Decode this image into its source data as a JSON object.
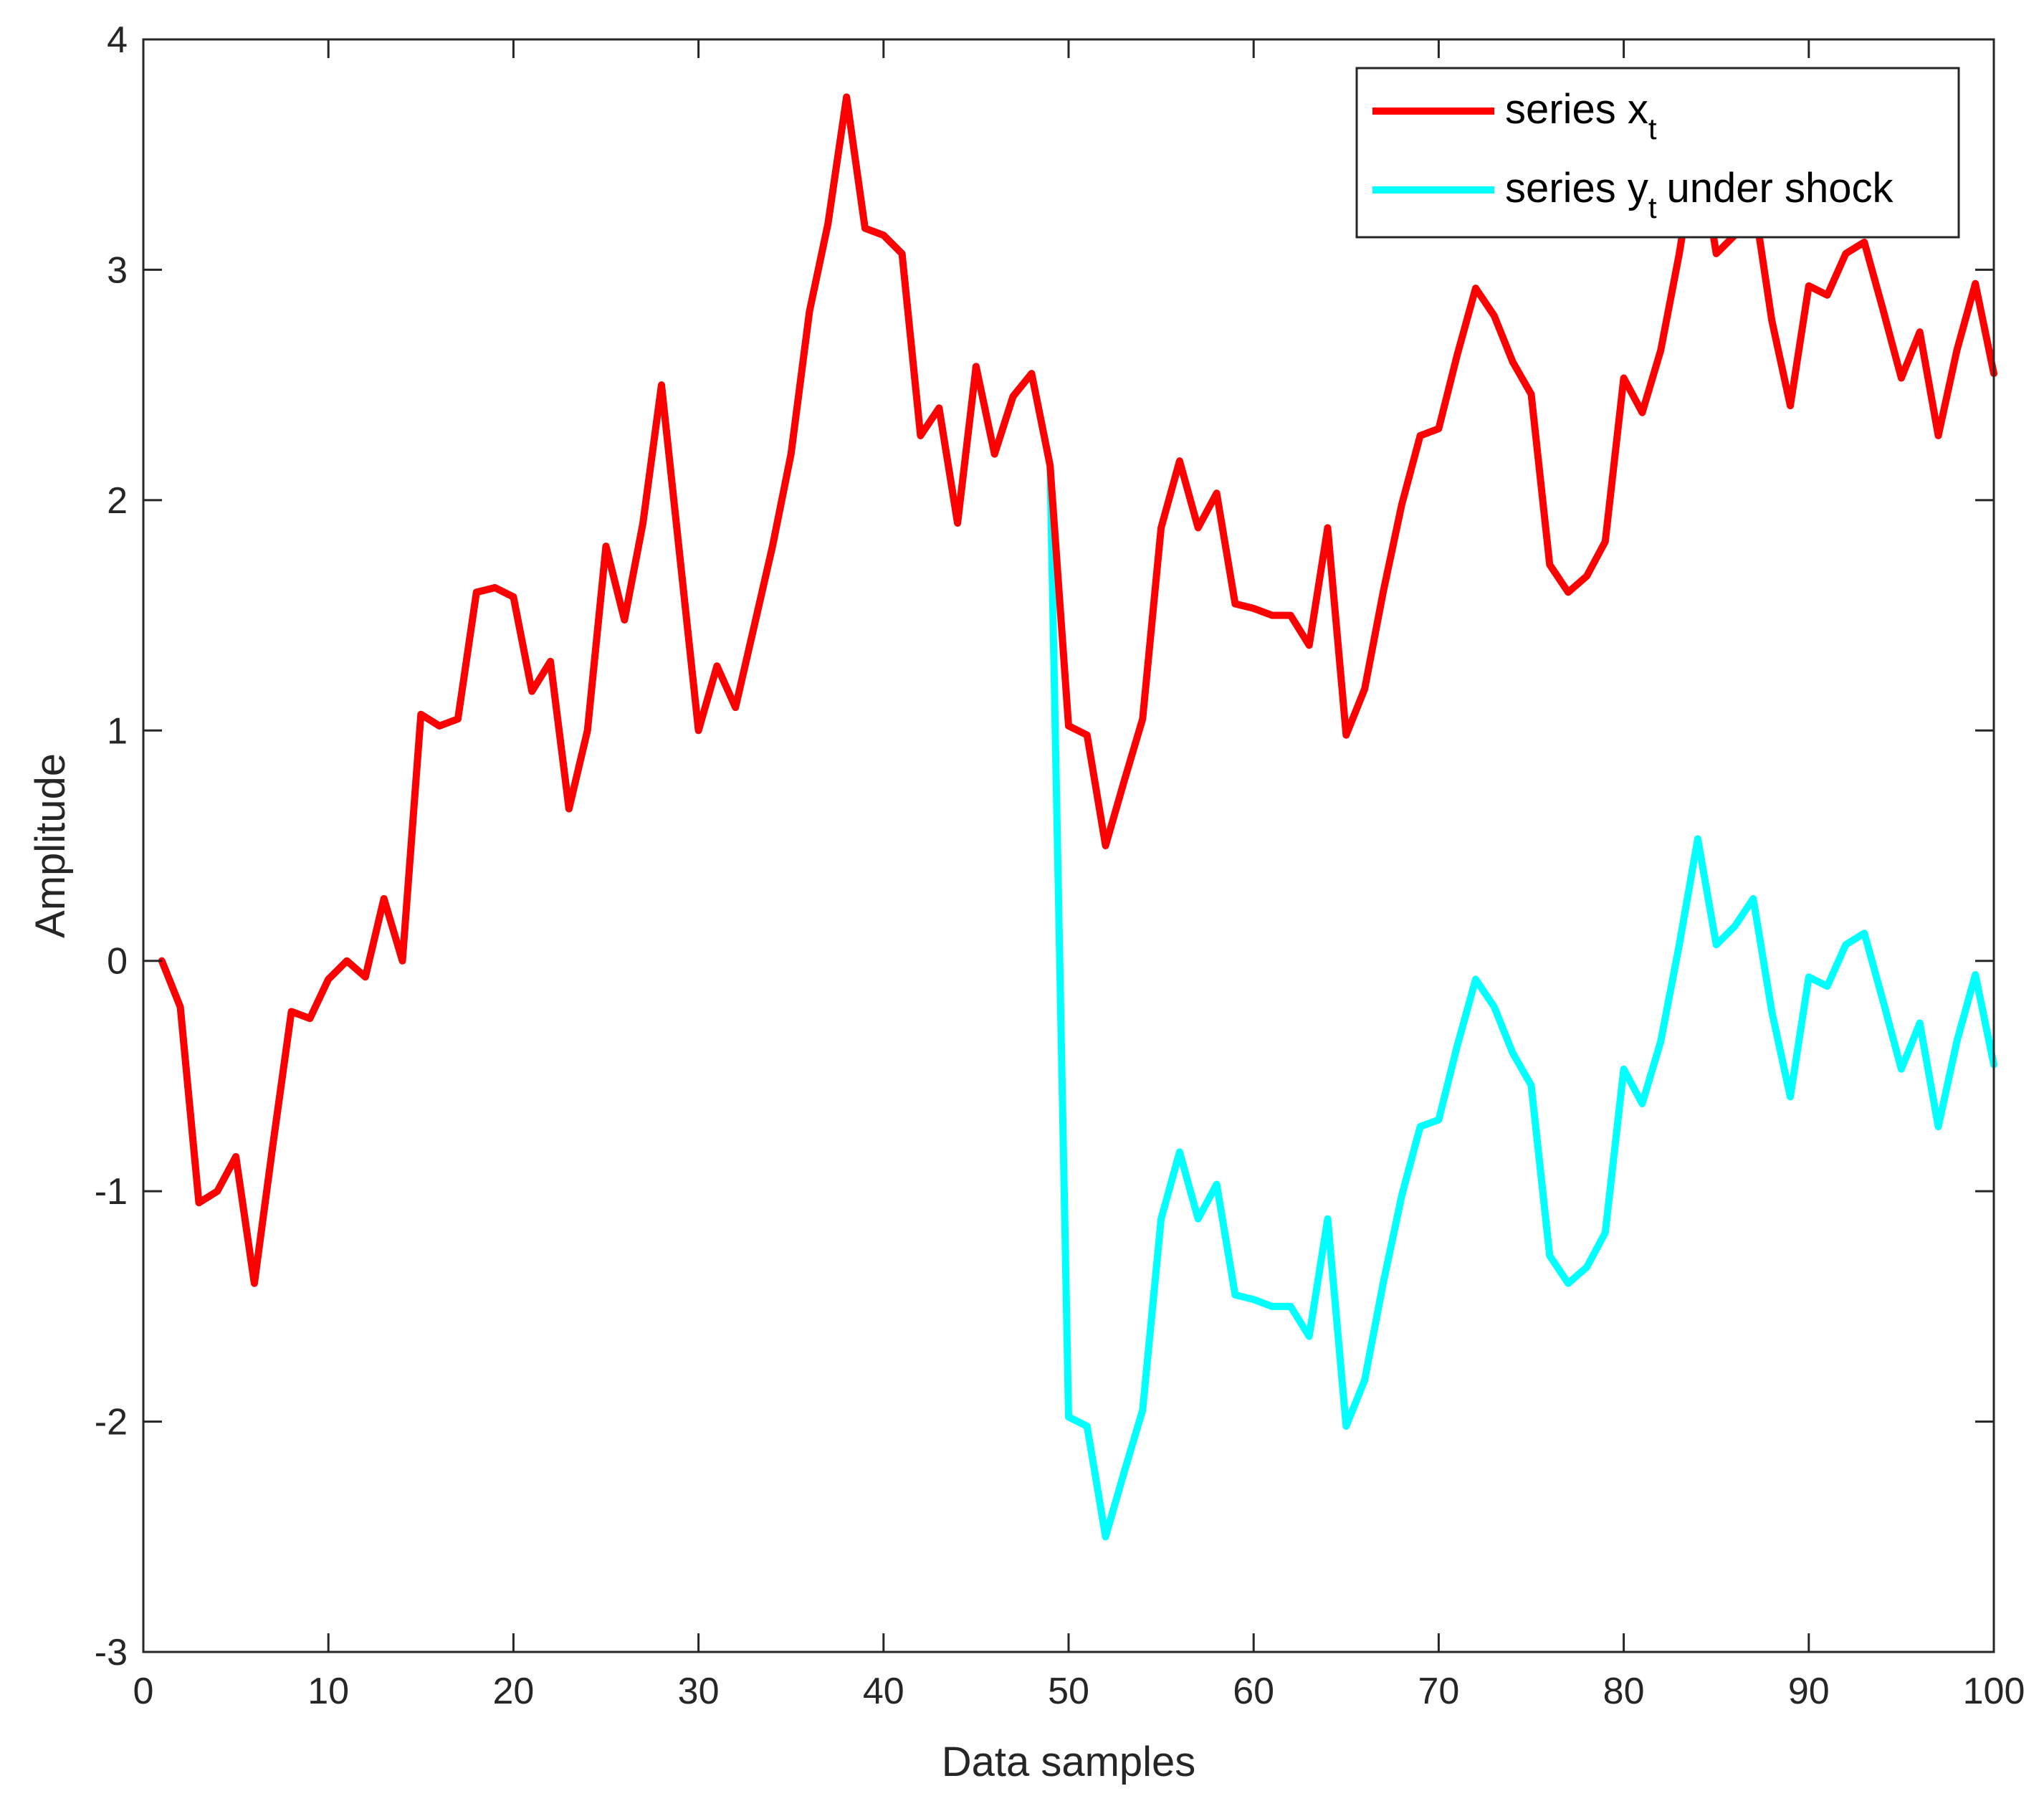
{
  "chart_data": {
    "type": "line",
    "title": "",
    "xlabel": "Data samples",
    "ylabel": "Amplitude",
    "xlim": [
      0,
      100
    ],
    "ylim": [
      -3,
      4
    ],
    "xticks": [
      0,
      10,
      20,
      30,
      40,
      50,
      60,
      70,
      80,
      90,
      100
    ],
    "yticks": [
      -3,
      -2,
      -1,
      0,
      1,
      2,
      3,
      4
    ],
    "xtick_labels": [
      "0",
      "10",
      "20",
      "30",
      "40",
      "50",
      "60",
      "70",
      "80",
      "90",
      "100"
    ],
    "ytick_labels": [
      "-3",
      "-2",
      "-1",
      "0",
      "1",
      "2",
      "3",
      "4"
    ],
    "grid": false,
    "legend_position": "top-right",
    "x": [
      1,
      2,
      3,
      4,
      5,
      6,
      7,
      8,
      9,
      10,
      11,
      12,
      13,
      14,
      15,
      16,
      17,
      18,
      19,
      20,
      21,
      22,
      23,
      24,
      25,
      26,
      27,
      28,
      29,
      30,
      31,
      32,
      33,
      34,
      35,
      36,
      37,
      38,
      39,
      40,
      41,
      42,
      43,
      44,
      45,
      46,
      47,
      48,
      49,
      50,
      51,
      52,
      53,
      54,
      55,
      56,
      57,
      58,
      59,
      60,
      61,
      62,
      63,
      64,
      65,
      66,
      67,
      68,
      69,
      70,
      71,
      72,
      73,
      74,
      75,
      76,
      77,
      78,
      79,
      80,
      81,
      82,
      83,
      84,
      85,
      86,
      87,
      88,
      89,
      90,
      91,
      92,
      93,
      94,
      95,
      96,
      97,
      98,
      99,
      100
    ],
    "series": [
      {
        "name": "series x",
        "name_subscript": "t",
        "color": "#ff0000",
        "values": [
          0,
          -0.2,
          -1.05,
          -1.0,
          -0.85,
          -1.4,
          -0.8,
          -0.22,
          -0.25,
          -0.08,
          0.0,
          -0.07,
          0.27,
          0.0,
          1.07,
          1.02,
          1.05,
          1.6,
          1.62,
          1.58,
          1.17,
          1.3,
          0.66,
          1.0,
          1.8,
          1.48,
          1.9,
          2.5,
          1.75,
          1.0,
          1.28,
          1.1,
          1.45,
          1.8,
          2.2,
          2.82,
          3.2,
          3.75,
          3.18,
          3.15,
          3.07,
          2.28,
          2.4,
          1.9,
          2.58,
          2.2,
          2.45,
          2.55,
          2.15,
          1.02,
          0.98,
          0.5,
          0.78,
          1.05,
          1.88,
          2.17,
          1.88,
          2.03,
          1.55,
          1.53,
          1.5,
          1.5,
          1.37,
          1.88,
          0.98,
          1.18,
          1.6,
          1.98,
          2.28,
          2.31,
          2.63,
          2.92,
          2.8,
          2.6,
          2.46,
          1.72,
          1.6,
          1.67,
          1.82,
          2.53,
          2.38,
          2.65,
          3.07,
          3.57,
          3.07,
          3.15,
          3.32,
          2.78,
          2.41,
          2.93,
          2.89,
          3.07,
          3.12,
          2.83,
          2.53,
          2.73,
          2.28,
          2.65,
          2.94,
          2.55
        ]
      },
      {
        "name": "series y",
        "name_subscript": "t",
        "name_suffix": "under shock",
        "color": "#00ffff",
        "values": [
          0,
          -0.2,
          -1.05,
          -1.0,
          -0.85,
          -1.4,
          -0.8,
          -0.22,
          -0.25,
          -0.08,
          0.0,
          -0.07,
          0.27,
          0.0,
          1.07,
          1.02,
          1.05,
          1.6,
          1.62,
          1.58,
          1.17,
          1.3,
          0.66,
          1.0,
          1.8,
          1.48,
          1.9,
          2.5,
          1.75,
          1.0,
          1.28,
          1.1,
          1.45,
          1.8,
          2.2,
          2.82,
          3.2,
          3.75,
          3.18,
          3.15,
          3.07,
          2.28,
          2.4,
          1.9,
          2.58,
          2.2,
          2.45,
          2.55,
          2.15,
          -1.98,
          -2.02,
          -2.5,
          -2.22,
          -1.95,
          -1.12,
          -0.83,
          -1.12,
          -0.97,
          -1.45,
          -1.47,
          -1.5,
          -1.5,
          -1.63,
          -1.12,
          -2.02,
          -1.82,
          -1.4,
          -1.02,
          -0.72,
          -0.69,
          -0.37,
          -0.08,
          -0.2,
          -0.4,
          -0.54,
          -1.28,
          -1.4,
          -1.33,
          -1.18,
          -0.47,
          -0.62,
          -0.35,
          0.07,
          0.53,
          0.07,
          0.15,
          0.27,
          -0.22,
          -0.59,
          -0.07,
          -0.11,
          0.07,
          0.12,
          -0.17,
          -0.47,
          -0.27,
          -0.72,
          -0.35,
          -0.06,
          -0.45
        ]
      }
    ]
  }
}
